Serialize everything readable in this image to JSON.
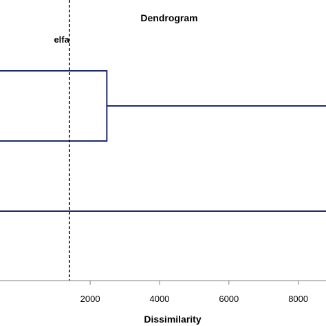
{
  "chart_data": {
    "type": "dendrogram",
    "title": "Dendrogram",
    "xlabel": "Dissimilarity",
    "xlim": [
      -600,
      8800
    ],
    "x_ticks": [
      2000,
      4000,
      6000,
      8000
    ],
    "x_tick_labels": [
      "2000",
      "4000",
      "6000",
      "8000"
    ],
    "threshold": {
      "x": 1400,
      "label": "elfa"
    },
    "links": [
      {
        "x_from": -600,
        "x_merge": 2480,
        "y_top": 1,
        "y_bottom": 2
      },
      {
        "x_from": 2480,
        "x_merge": 8800,
        "y_top": 1.5,
        "y_bottom": 1.5
      },
      {
        "x_from": -600,
        "x_merge": 8800,
        "y_top": 3,
        "y_bottom": 3
      }
    ]
  }
}
